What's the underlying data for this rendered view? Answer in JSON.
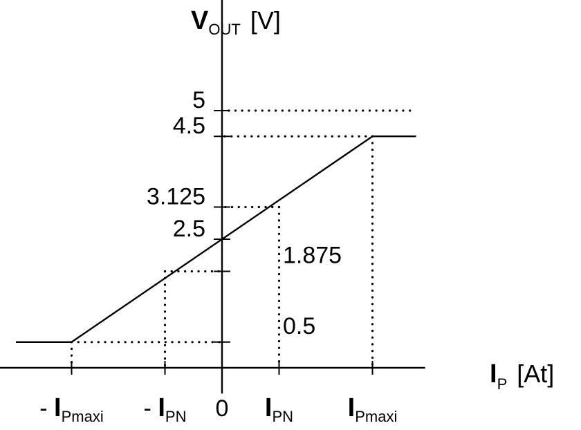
{
  "chart_data": {
    "type": "line",
    "x_axis": {
      "symbol": "I",
      "subscript": "P",
      "unit": "[At]",
      "ticks": [
        {
          "key": "neg_ipmaxi",
          "prefix": "- ",
          "main": "I",
          "sub": "Pmaxi",
          "value": -1
        },
        {
          "key": "neg_ipn",
          "prefix": "- ",
          "main": "I",
          "sub": "PN",
          "value": -0.3793
        },
        {
          "key": "zero",
          "prefix": "",
          "main": "0",
          "sub": "",
          "value": 0
        },
        {
          "key": "ipn",
          "prefix": "",
          "main": "I",
          "sub": "PN",
          "value": 0.3793
        },
        {
          "key": "ipmaxi",
          "prefix": "",
          "main": "I",
          "sub": "Pmaxi",
          "value": 1
        }
      ]
    },
    "y_axis": {
      "symbol": "V",
      "subscript": "OUT",
      "unit": "[V]",
      "ticks": [
        {
          "value": 5,
          "label": "5",
          "side": "left"
        },
        {
          "value": 4.5,
          "label": "4.5",
          "side": "left"
        },
        {
          "value": 3.125,
          "label": "3.125",
          "side": "left"
        },
        {
          "value": 2.5,
          "label": "2.5",
          "side": "left"
        },
        {
          "value": 1.875,
          "label": "1.875",
          "side": "right"
        },
        {
          "value": 0.5,
          "label": "0.5",
          "side": "right"
        }
      ],
      "range": [
        -0.5,
        7.8
      ]
    },
    "x_range": [
      -1.6,
      1.35
    ],
    "series": [
      {
        "values": [
          [
            -1.37,
            0.5
          ],
          [
            -1,
            0.5
          ],
          [
            1,
            4.5
          ],
          [
            1.29,
            4.5
          ]
        ]
      }
    ],
    "guides": [
      {
        "from": [
          -1,
          0.5
        ],
        "to": [
          0,
          0.5
        ]
      },
      {
        "from": [
          -1,
          0.5
        ],
        "to": [
          -1,
          0
        ]
      },
      {
        "from": [
          -0.3793,
          1.875
        ],
        "to": [
          0,
          1.875
        ]
      },
      {
        "from": [
          -0.3793,
          1.875
        ],
        "to": [
          -0.3793,
          0
        ]
      },
      {
        "from": [
          0.3793,
          3.125
        ],
        "to": [
          0,
          3.125
        ]
      },
      {
        "from": [
          0.3793,
          3.125
        ],
        "to": [
          0.3793,
          0
        ]
      },
      {
        "from": [
          1,
          4.5
        ],
        "to": [
          0,
          4.5
        ]
      },
      {
        "from": [
          1,
          4.5
        ],
        "to": [
          1,
          0
        ]
      },
      {
        "from": [
          0,
          5
        ],
        "to": [
          1.29,
          5
        ]
      }
    ],
    "grid": false,
    "legend": "none"
  }
}
